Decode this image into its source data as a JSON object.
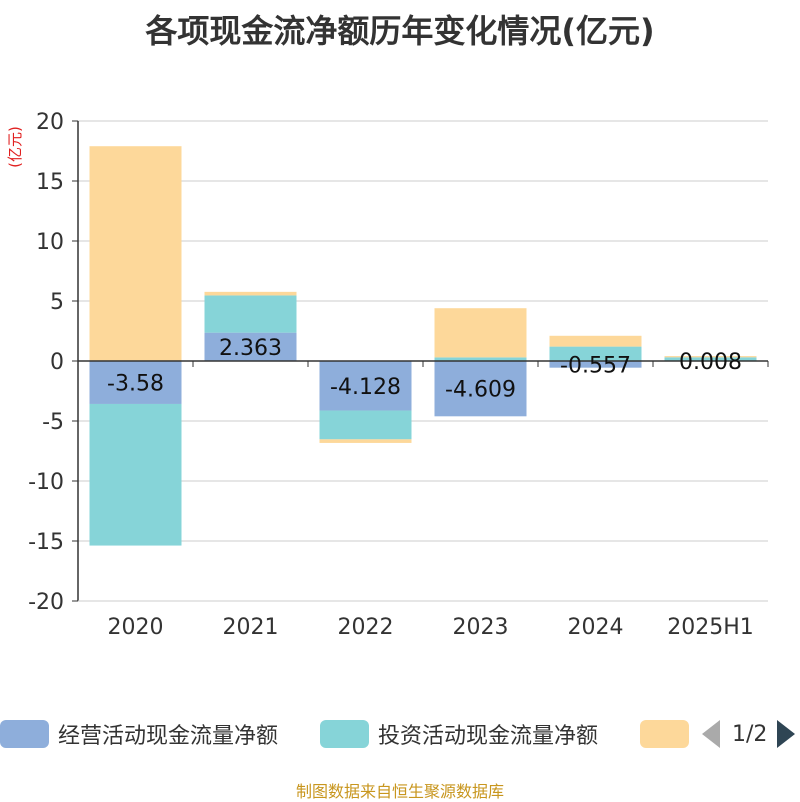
{
  "title": "各项现金流净额历年变化情况(亿元)",
  "source": "制图数据来自恒生聚源数据库",
  "colors": {
    "operating": "#8eaedb",
    "investing": "#86d4d8",
    "financing": "#fdd89a",
    "axis": "#333333",
    "grid": "#cccccc",
    "unit": "#e02020",
    "source": "#c8961e"
  },
  "legend": {
    "page_indicator": "1/2",
    "prev_icon": "triangle-left-icon",
    "next_icon": "triangle-right-icon"
  },
  "chart_data": {
    "type": "bar",
    "stacked": true,
    "title": "各项现金流净额历年变化情况(亿元)",
    "ylabel": "(亿元)",
    "ylim": [
      -20,
      20
    ],
    "yticks": [
      20,
      15,
      10,
      5,
      0,
      -5,
      -10,
      -15,
      -20
    ],
    "ytick_labels": [
      "20",
      "15",
      "10",
      "5",
      "0",
      "-5",
      "-10",
      "-15",
      "-20"
    ],
    "grid": true,
    "legend_position": "bottom",
    "categories": [
      "2020",
      "2021",
      "2022",
      "2023",
      "2024",
      "2025H1"
    ],
    "series": [
      {
        "name": "经营活动现金流量净额",
        "values": [
          -3.58,
          2.363,
          -4.128,
          -4.609,
          -0.557,
          0.008
        ],
        "labels": [
          "-3.58",
          "2.363",
          "-4.128",
          "-4.609",
          "-0.557",
          "0.008"
        ]
      },
      {
        "name": "投资活动现金流量净额",
        "values": [
          -11.8,
          3.1,
          -2.4,
          0.3,
          1.2,
          0.3
        ]
      },
      {
        "name": "",
        "values": [
          17.9,
          0.3,
          -0.3,
          4.1,
          0.9,
          0.1
        ]
      }
    ]
  }
}
